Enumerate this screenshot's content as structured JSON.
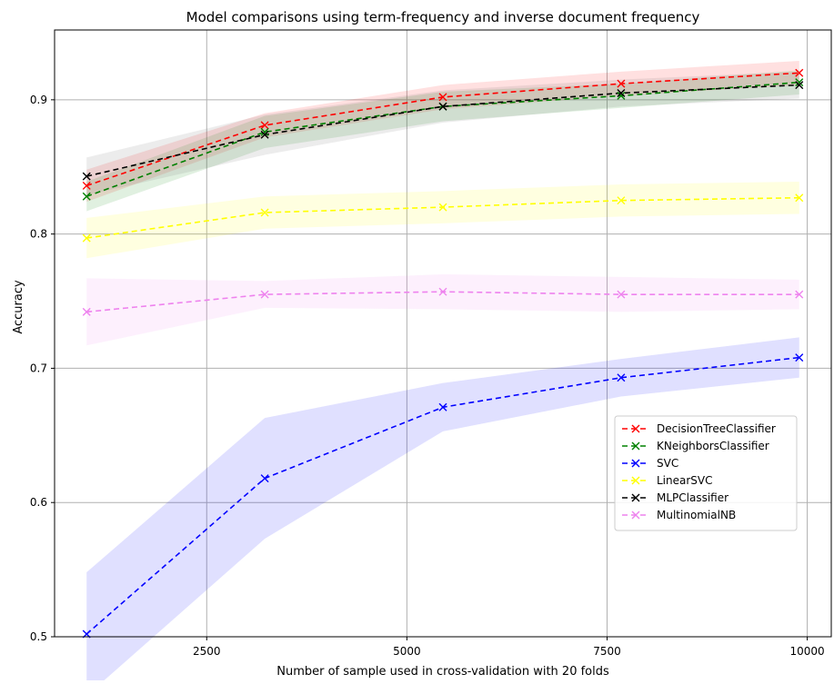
{
  "chart_data": {
    "type": "line",
    "title": "Model comparisons using term-frequency and inverse document frequency",
    "xlabel": "Number of sample used in cross-validation with 20 folds",
    "ylabel": "Accuracy",
    "xlim": [
      600,
      10300
    ],
    "ylim": [
      0.5,
      0.952
    ],
    "xticks": [
      2500,
      5000,
      7500,
      10000
    ],
    "yticks": [
      0.5,
      0.6,
      0.7,
      0.8,
      0.9
    ],
    "grid": true,
    "legend_position": "lower-right",
    "x": [
      1000,
      3225,
      5450,
      7675,
      9900
    ],
    "series": [
      {
        "name": "DecisionTreeClassifier",
        "color": "#ff0000",
        "band_color": "#ff0000",
        "values": [
          0.836,
          0.881,
          0.902,
          0.912,
          0.92
        ],
        "band": [
          [
            0.824,
            0.848
          ],
          [
            0.872,
            0.89
          ],
          [
            0.893,
            0.911
          ],
          [
            0.903,
            0.921
          ],
          [
            0.911,
            0.929
          ]
        ]
      },
      {
        "name": "KNeighborsClassifier",
        "color": "#008000",
        "band_color": "#008000",
        "values": [
          0.828,
          0.876,
          0.895,
          0.903,
          0.913
        ],
        "band": [
          [
            0.817,
            0.839
          ],
          [
            0.864,
            0.888
          ],
          [
            0.884,
            0.906
          ],
          [
            0.894,
            0.912
          ],
          [
            0.904,
            0.922
          ]
        ]
      },
      {
        "name": "SVC",
        "color": "#0000ff",
        "band_color": "#0000ff",
        "values": [
          0.502,
          0.618,
          0.671,
          0.693,
          0.708
        ],
        "band": [
          [
            0.456,
            0.548
          ],
          [
            0.573,
            0.663
          ],
          [
            0.653,
            0.689
          ],
          [
            0.679,
            0.707
          ],
          [
            0.693,
            0.723
          ]
        ]
      },
      {
        "name": "LinearSVC",
        "color": "#ffff00",
        "band_color": "#ffff00",
        "values": [
          0.797,
          0.816,
          0.82,
          0.825,
          0.827
        ],
        "band": [
          [
            0.782,
            0.812
          ],
          [
            0.804,
            0.828
          ],
          [
            0.808,
            0.832
          ],
          [
            0.813,
            0.837
          ],
          [
            0.815,
            0.839
          ]
        ]
      },
      {
        "name": "MLPClassifier",
        "color": "#000000",
        "band_color": "#606060",
        "values": [
          0.843,
          0.874,
          0.895,
          0.905,
          0.911
        ],
        "band": [
          [
            0.829,
            0.857
          ],
          [
            0.859,
            0.889
          ],
          [
            0.883,
            0.907
          ],
          [
            0.895,
            0.915
          ],
          [
            0.901,
            0.921
          ]
        ]
      },
      {
        "name": "MultinomialNB",
        "color": "#ee82ee",
        "band_color": "#ee82ee",
        "values": [
          0.742,
          0.755,
          0.757,
          0.755,
          0.755
        ],
        "band": [
          [
            0.717,
            0.767
          ],
          [
            0.745,
            0.765
          ],
          [
            0.744,
            0.77
          ],
          [
            0.742,
            0.768
          ],
          [
            0.744,
            0.766
          ]
        ]
      }
    ]
  }
}
